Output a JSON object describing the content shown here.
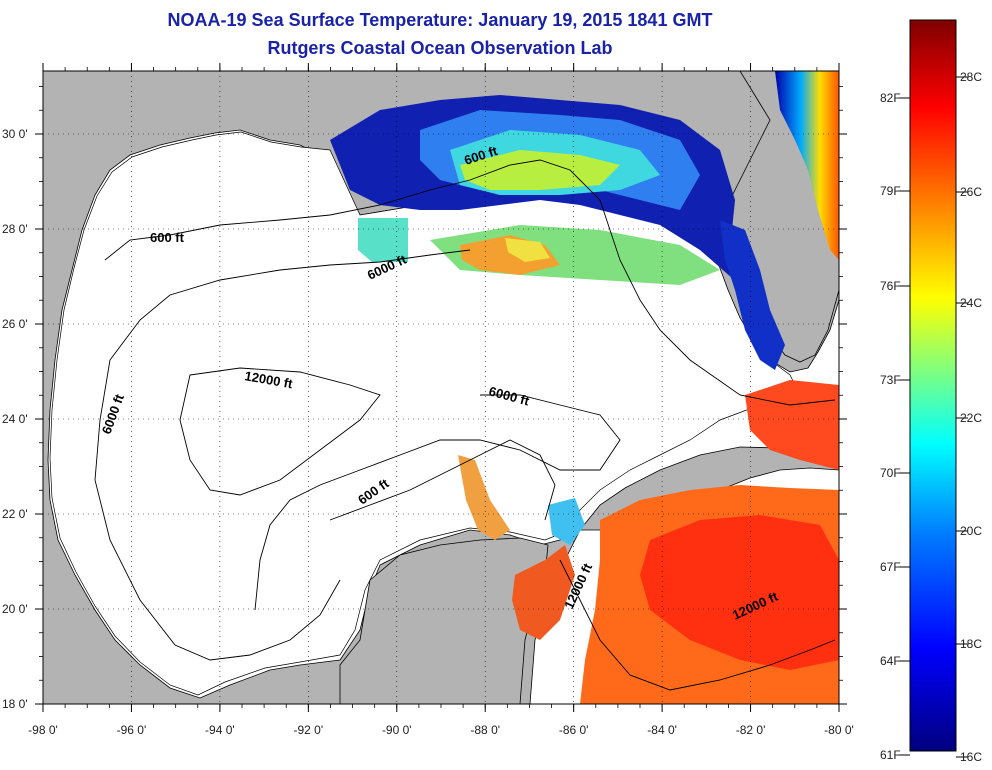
{
  "title": "NOAA-19 Sea Surface Temperature:  January 19, 2015 1841 GMT",
  "subtitle": "Rutgers Coastal Ocean Observation Lab",
  "map": {
    "x_ticks": [
      "-98 0'",
      "-96 0'",
      "-94 0'",
      "-92 0'",
      "-90 0'",
      "-88 0'",
      "-86 0'",
      "-84 0'",
      "-82 0'",
      "-80 0'"
    ],
    "y_ticks": [
      "18 0'",
      "20 0'",
      "22 0'",
      "24 0'",
      "26 0'",
      "28 0'",
      "30 0'"
    ],
    "contour_labels": [
      "600 ft",
      "600 ft",
      "6000 ft",
      "6000 ft",
      "12000 ft",
      "6000 ft",
      "600 ft",
      "12000 ft",
      "12000 ft"
    ],
    "land_color": "#b3b3b3",
    "nodata_color": "#ffffff"
  },
  "colorbar": {
    "fahrenheit": [
      "82F",
      "79F",
      "76F",
      "73F",
      "70F",
      "67F",
      "64F",
      "61F"
    ],
    "celsius": [
      "28C",
      "26C",
      "24C",
      "22C",
      "20C",
      "18C",
      "16C"
    ],
    "gradient": [
      "#00007f",
      "#0000ff",
      "#007fff",
      "#00ffff",
      "#7fff7f",
      "#ffff00",
      "#ff7f00",
      "#ff0000",
      "#7f0000"
    ]
  }
}
